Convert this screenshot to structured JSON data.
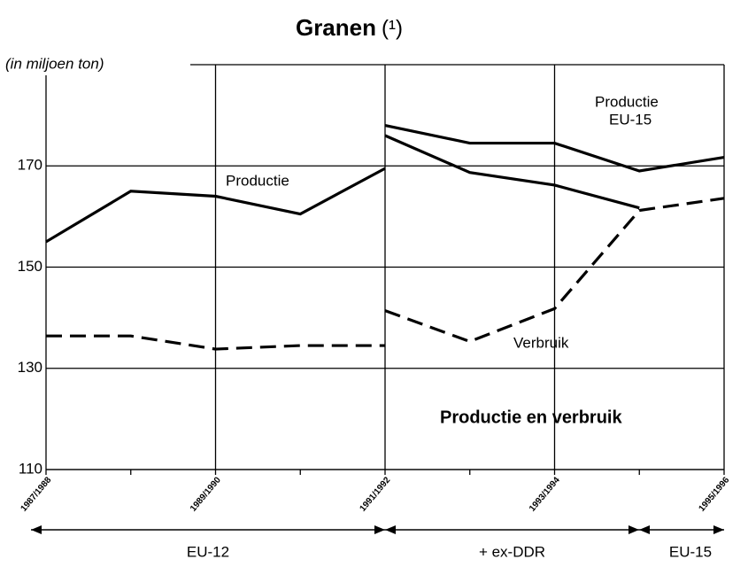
{
  "chart_data": {
    "type": "line",
    "title": "Granen",
    "title_note": "(¹)",
    "y_label": "(in miljoen ton)",
    "categories": [
      "1987/1988",
      null,
      "1989/1990",
      null,
      "1991/1992",
      null,
      "1993/1994",
      null,
      "1995/1996"
    ],
    "series": [
      {
        "color": "#000000",
        "dash": false,
        "values": [
          155,
          165,
          164,
          160.5,
          169.5,
          null,
          null,
          null,
          null
        ]
      },
      {
        "color": "#000000",
        "dash": false,
        "values": [
          null,
          null,
          null,
          null,
          178,
          174.5,
          174.5,
          169,
          171.7
        ]
      },
      {
        "color": "#000000",
        "dash": false,
        "values": [
          null,
          null,
          null,
          null,
          176,
          168.7,
          166.2,
          161.7,
          null
        ]
      },
      {
        "color": "#000000",
        "dash": true,
        "values": [
          136.4,
          136.4,
          133.8,
          134.5,
          134.5,
          null,
          null,
          null,
          null
        ]
      },
      {
        "color": "#000000",
        "dash": true,
        "values": [
          null,
          null,
          null,
          null,
          141.4,
          135.3,
          141.8,
          161.2,
          163.6
        ]
      }
    ],
    "annotations": [
      "Productie",
      "Productie",
      "EU-15",
      "Verbruik",
      "Productie en verbruik"
    ],
    "periods": [
      "EU-12",
      "+ ex-DDR",
      "EU-15"
    ],
    "ylim": [
      110,
      190
    ],
    "yticks": [
      110,
      130,
      150,
      170
    ],
    "grid": true
  }
}
